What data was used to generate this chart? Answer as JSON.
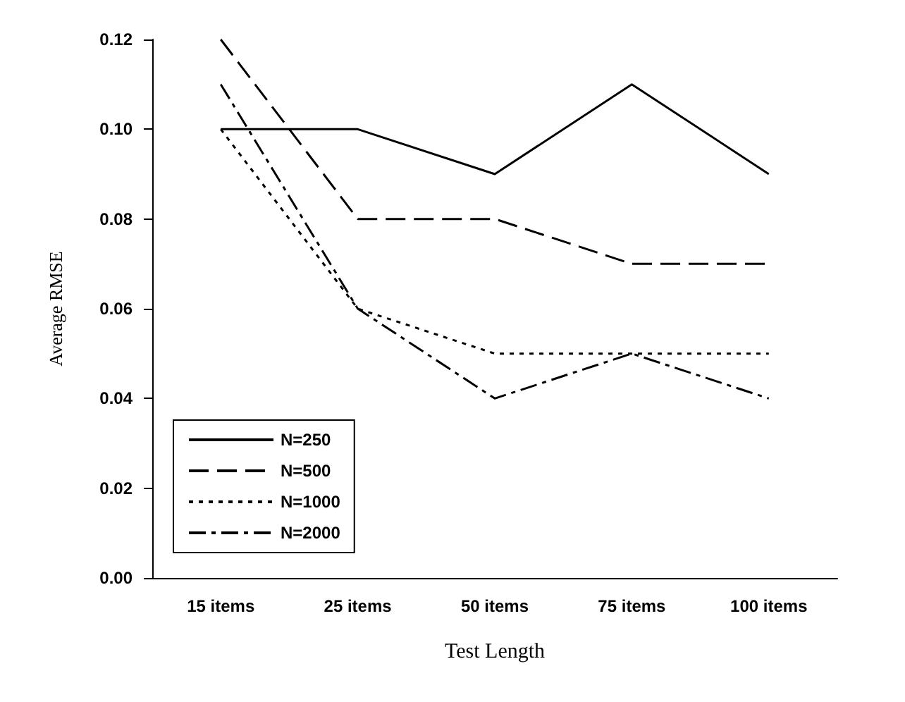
{
  "chart_data": {
    "type": "line",
    "xlabel": "Test Length",
    "ylabel": "Average RMSE",
    "categories": [
      "15 items",
      "25 items",
      "50 items",
      "75 items",
      "100 items"
    ],
    "series": [
      {
        "name": "N=250",
        "color": "#000000",
        "line_style": "solid",
        "values": [
          0.1,
          0.1,
          0.09,
          0.11,
          0.09
        ]
      },
      {
        "name": "N=500",
        "color": "#000000",
        "line_style": "dashed",
        "values": [
          0.12,
          0.08,
          0.08,
          0.07,
          0.07
        ]
      },
      {
        "name": "N=1000",
        "color": "#000000",
        "line_style": "dotted",
        "values": [
          0.1,
          0.06,
          0.05,
          0.05,
          0.05
        ]
      },
      {
        "name": "N=2000",
        "color": "#000000",
        "line_style": "dashdot",
        "values": [
          0.11,
          0.06,
          0.04,
          0.05,
          0.04
        ]
      }
    ],
    "ylim": [
      0,
      0.12
    ],
    "yticks": [
      {
        "value": 0,
        "label": "0.00"
      },
      {
        "value": 0.02,
        "label": "0.02"
      },
      {
        "value": 0.04,
        "label": "0.04"
      },
      {
        "value": 0.06,
        "label": "0.06"
      },
      {
        "value": 0.08,
        "label": "0.08"
      },
      {
        "value": 0.1,
        "label": "0.10"
      },
      {
        "value": 0.12,
        "label": "0.12"
      }
    ],
    "grid": false,
    "legend": "bottom left",
    "marker": "none"
  }
}
